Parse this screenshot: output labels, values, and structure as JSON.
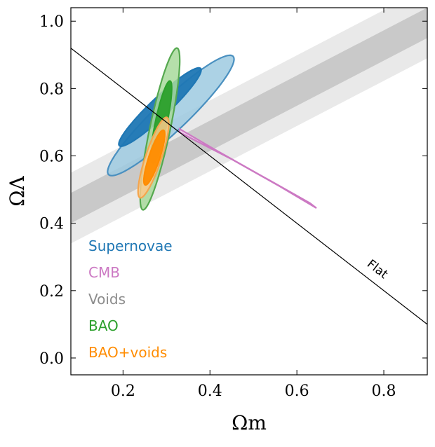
{
  "chart_data": {
    "type": "scatter",
    "xlabel": "Ωm",
    "ylabel": "ΩΛ",
    "xlim": [
      0.08,
      0.9
    ],
    "ylim": [
      -0.05,
      1.04
    ],
    "x_ticks": [
      0.2,
      0.4,
      0.6,
      0.8
    ],
    "x_tick_labels": [
      "0.2",
      "0.4",
      "0.6",
      "0.8"
    ],
    "y_ticks": [
      0.0,
      0.2,
      0.4,
      0.6,
      0.8,
      1.0
    ],
    "y_tick_labels": [
      "0.0",
      "0.2",
      "0.4",
      "0.6",
      "0.8",
      "1.0"
    ],
    "grid": false,
    "legend_position": "bottom-left",
    "legend": [
      {
        "label": "Supernovae",
        "color": "#1f77b4"
      },
      {
        "label": "CMB",
        "color": "#cc79c3"
      },
      {
        "label": "Voids",
        "color": "#8c8c8c"
      },
      {
        "label": "BAO",
        "color": "#2ca02c"
      },
      {
        "label": "BAO+voids",
        "color": "#ff8c00"
      }
    ],
    "annotation": {
      "text": "Flat",
      "x": 0.78,
      "y": 0.255
    },
    "flat_line": {
      "x": [
        0.08,
        0.9
      ],
      "y": [
        0.92,
        0.1
      ]
    },
    "voids_band": {
      "x": [
        0.08,
        0.9
      ],
      "outer_lower": [
        0.34,
        0.89
      ],
      "outer_upper": [
        0.55,
        1.1
      ],
      "inner_lower": [
        0.4,
        0.95
      ],
      "inner_upper": [
        0.49,
        1.04
      ]
    },
    "series": [
      {
        "name": "Supernovae",
        "contours": [
          {
            "level": "95%",
            "cx": 0.31,
            "cy": 0.72,
            "rx": 0.245,
            "ry": 0.045,
            "angle_deg": 46,
            "fill": "#9ecae1",
            "stroke": "#4a90c0"
          },
          {
            "level": "68%",
            "cx": 0.285,
            "cy": 0.745,
            "rx": 0.16,
            "ry": 0.027,
            "angle_deg": 46,
            "fill": "#1f77b4",
            "stroke": "#1f77b4"
          }
        ]
      },
      {
        "name": "BAO",
        "contours": [
          {
            "level": "95%",
            "cx": 0.285,
            "cy": 0.68,
            "rx": 0.245,
            "ry": 0.028,
            "angle_deg": 79,
            "fill": "#a8d99b",
            "stroke": "#55a84f"
          },
          {
            "level": "68%",
            "cx": 0.288,
            "cy": 0.7,
            "rx": 0.125,
            "ry": 0.016,
            "angle_deg": 79,
            "fill": "#2ca02c",
            "stroke": "#2ca02c"
          }
        ]
      },
      {
        "name": "BAO+voids",
        "contours": [
          {
            "level": "95%",
            "cx": 0.27,
            "cy": 0.595,
            "rx": 0.125,
            "ry": 0.022,
            "angle_deg": 73,
            "fill": "#fdc98a",
            "stroke": "#f5a54d"
          },
          {
            "level": "68%",
            "cx": 0.272,
            "cy": 0.595,
            "rx": 0.085,
            "ry": 0.015,
            "angle_deg": 73,
            "fill": "#ff8c00",
            "stroke": "#ff8c00"
          }
        ]
      },
      {
        "name": "CMB",
        "contours": [
          {
            "level": "95%",
            "points": [
              [
                0.33,
                0.67
              ],
              [
                0.45,
                0.59
              ],
              [
                0.56,
                0.51
              ],
              [
                0.645,
                0.445
              ],
              [
                0.63,
                0.46
              ],
              [
                0.52,
                0.54
              ],
              [
                0.41,
                0.62
              ],
              [
                0.33,
                0.68
              ]
            ],
            "fill": "#efd0ec",
            "stroke": "#cc79c3"
          }
        ]
      }
    ]
  }
}
